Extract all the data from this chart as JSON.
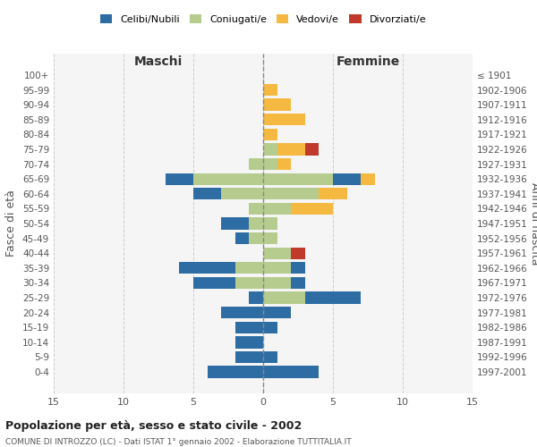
{
  "age_groups": [
    "0-4",
    "5-9",
    "10-14",
    "15-19",
    "20-24",
    "25-29",
    "30-34",
    "35-39",
    "40-44",
    "45-49",
    "50-54",
    "55-59",
    "60-64",
    "65-69",
    "70-74",
    "75-79",
    "80-84",
    "85-89",
    "90-94",
    "95-99",
    "100+"
  ],
  "birth_years": [
    "1997-2001",
    "1992-1996",
    "1987-1991",
    "1982-1986",
    "1977-1981",
    "1972-1976",
    "1967-1971",
    "1962-1966",
    "1957-1961",
    "1952-1956",
    "1947-1951",
    "1942-1946",
    "1937-1941",
    "1932-1936",
    "1927-1931",
    "1922-1926",
    "1917-1921",
    "1912-1916",
    "1907-1911",
    "1902-1906",
    "≤ 1901"
  ],
  "maschi": {
    "celibi": [
      4,
      2,
      2,
      2,
      3,
      1,
      3,
      4,
      0,
      1,
      2,
      0,
      2,
      2,
      0,
      0,
      0,
      0,
      0,
      0,
      0
    ],
    "coniugati": [
      0,
      0,
      0,
      0,
      0,
      0,
      2,
      2,
      0,
      1,
      1,
      1,
      3,
      5,
      1,
      0,
      0,
      0,
      0,
      0,
      0
    ],
    "vedovi": [
      0,
      0,
      0,
      0,
      0,
      0,
      0,
      0,
      0,
      0,
      0,
      0,
      0,
      0,
      0,
      0,
      0,
      0,
      0,
      0,
      0
    ],
    "divorziati": [
      0,
      0,
      0,
      0,
      0,
      0,
      0,
      0,
      0,
      0,
      0,
      0,
      0,
      0,
      0,
      0,
      0,
      0,
      0,
      0,
      0
    ]
  },
  "femmine": {
    "nubili": [
      4,
      1,
      0,
      1,
      2,
      4,
      1,
      1,
      0,
      0,
      0,
      0,
      0,
      2,
      0,
      0,
      0,
      0,
      0,
      0,
      0
    ],
    "coniugate": [
      0,
      0,
      0,
      0,
      0,
      3,
      2,
      2,
      2,
      1,
      1,
      2,
      4,
      5,
      1,
      1,
      0,
      0,
      0,
      0,
      0
    ],
    "vedove": [
      0,
      0,
      0,
      0,
      0,
      0,
      0,
      0,
      0,
      0,
      0,
      3,
      2,
      1,
      1,
      2,
      1,
      3,
      2,
      1,
      0
    ],
    "divorziate": [
      0,
      0,
      0,
      0,
      0,
      0,
      0,
      0,
      1,
      0,
      0,
      0,
      0,
      0,
      0,
      1,
      0,
      0,
      0,
      0,
      0
    ]
  },
  "colors": {
    "celibi_nubili": "#2e6da4",
    "coniugati": "#b5cc8e",
    "vedovi": "#f5b942",
    "divorziati": "#c0392b"
  },
  "xlim": 15,
  "title": "Popolazione per età, sesso e stato civile - 2002",
  "subtitle": "COMUNE DI INTROZZO (LC) - Dati ISTAT 1° gennaio 2002 - Elaborazione TUTTITALIA.IT",
  "ylabel_left": "Fasce di età",
  "ylabel_right": "Anni di nascita",
  "xlabel_maschi": "Maschi",
  "xlabel_femmine": "Femmine"
}
